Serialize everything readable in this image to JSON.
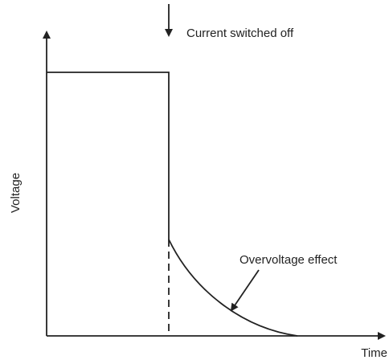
{
  "annotation": "Current switched off",
  "y_label": "Voltage",
  "x_label": "Time",
  "effect_label": "Overvoltage effect"
}
